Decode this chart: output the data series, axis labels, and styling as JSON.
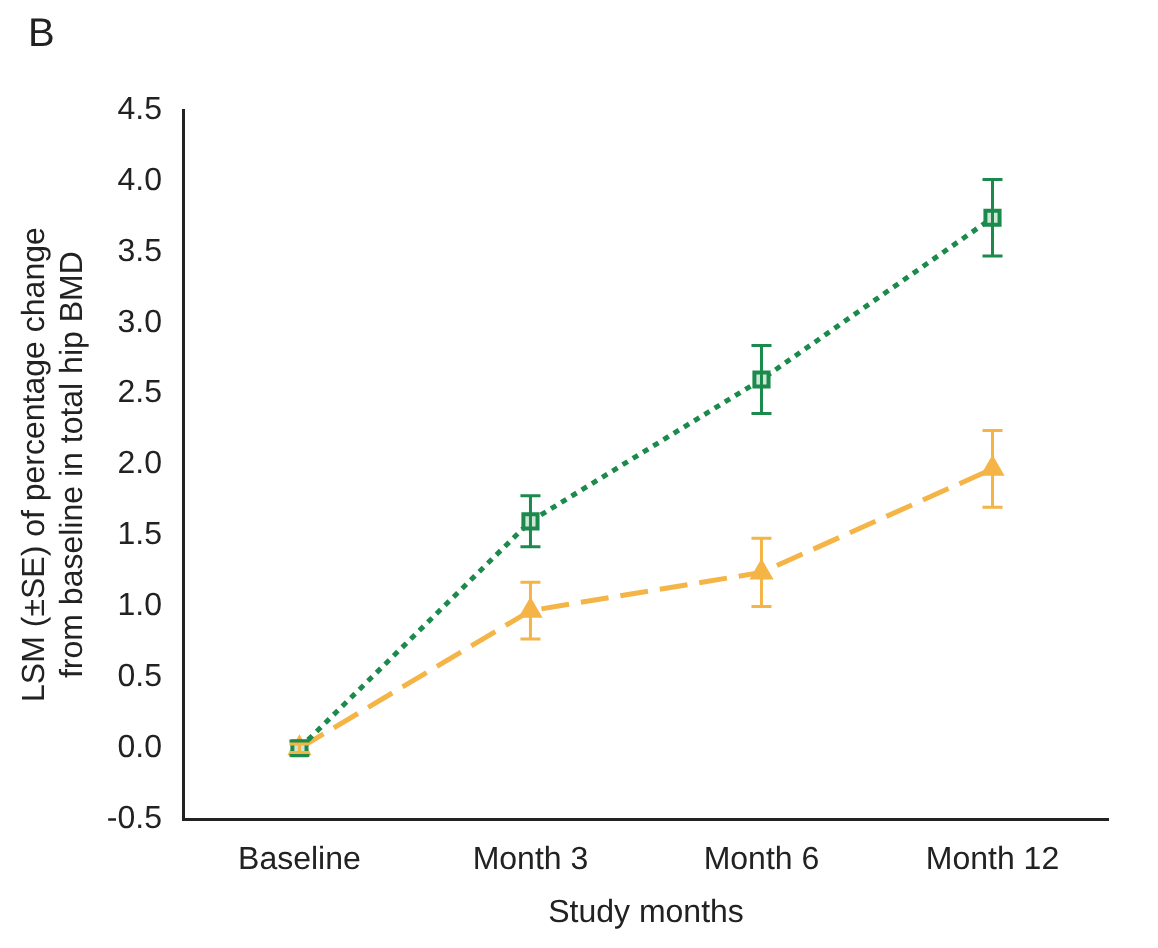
{
  "chart_data": {
    "type": "line",
    "xlabel": "Study months",
    "ylabel": "LSM (±SE) of percentage change from baseline in total hip BMD",
    "annotations": [
      "B"
    ],
    "categories": [
      "Baseline",
      "Month 3",
      "Month 6",
      "Month 12"
    ],
    "series": [
      {
        "color": "#1b8a4c",
        "marker": "square",
        "line_style": "dotted",
        "values": [
          0,
          1.6,
          2.6,
          3.74
        ],
        "errors": [
          0.05,
          0.18,
          0.24,
          0.27
        ]
      },
      {
        "color": "#f4b446",
        "marker": "triangle",
        "line_style": "dashed",
        "values": [
          0,
          0.97,
          1.24,
          1.97
        ],
        "errors": [
          0.03,
          0.2,
          0.24,
          0.27
        ]
      }
    ],
    "ylim": [
      -0.5,
      4.5
    ],
    "yticks": [
      -0.5,
      {
        "value": 0,
        "label": "0.0"
      },
      0.5,
      {
        "value": 1,
        "label": "1.0"
      },
      1.5,
      {
        "value": 2,
        "label": "2.0"
      },
      2.5,
      {
        "value": 3,
        "label": "3.0"
      },
      3.5,
      {
        "value": 4,
        "label": "4.0"
      },
      4.5
    ],
    "grid": false,
    "legend": false
  }
}
